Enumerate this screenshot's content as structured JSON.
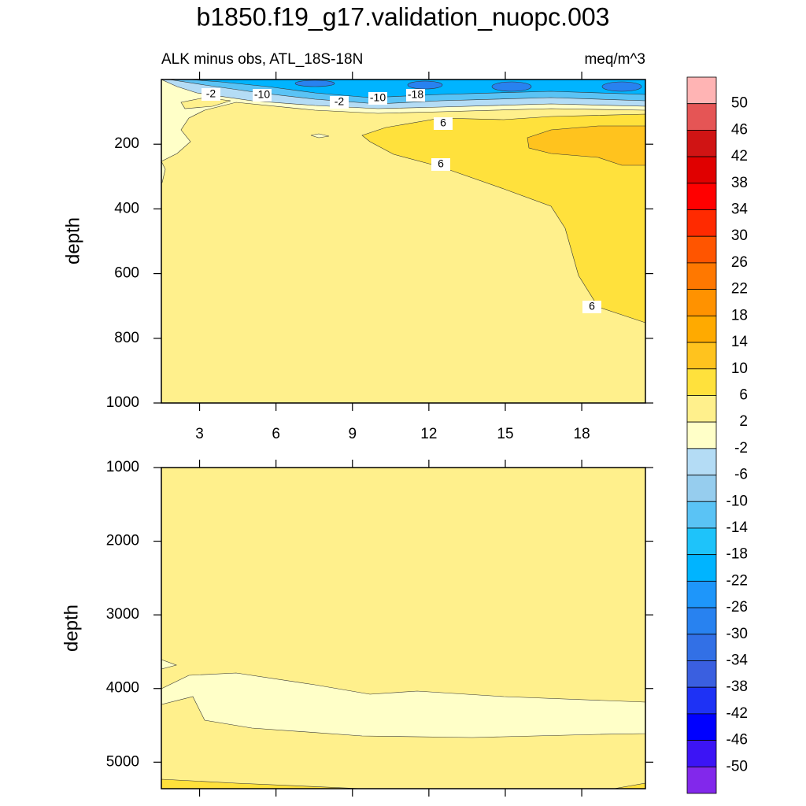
{
  "title": "b1850.f19_g17.validation_nuopc.003",
  "chart_data": [
    {
      "type": "contour",
      "subtitle": "ALK minus obs, ATL_18S-18N",
      "units": "meq/m^3",
      "ylabel": "depth",
      "xlim": [
        1.5,
        20.5
      ],
      "xticks": [
        3,
        6,
        9,
        12,
        15,
        18
      ],
      "ylim": [
        0,
        1000
      ],
      "yticks": [
        200,
        400,
        600,
        800,
        1000
      ],
      "y_reversed": true,
      "contour_labels": [
        -2,
        -10,
        -2,
        -10,
        -18,
        6,
        6,
        6
      ]
    },
    {
      "type": "contour",
      "ylabel": "depth",
      "xlim": [
        1.5,
        20.5
      ],
      "xticks": [
        3,
        6,
        9,
        12,
        15,
        18
      ],
      "ylim": [
        1000,
        5360
      ],
      "yticks": [
        1000,
        2000,
        3000,
        4000,
        5000
      ],
      "y_reversed": true
    }
  ],
  "colorbar": {
    "levels": [
      50,
      46,
      42,
      38,
      34,
      30,
      26,
      22,
      18,
      14,
      10,
      6,
      2,
      -2,
      -6,
      -10,
      -14,
      -18,
      -22,
      -26,
      -30,
      -34,
      -38,
      -42,
      -46,
      -50
    ],
    "colors": [
      "#ffb4b4",
      "#e55555",
      "#d01414",
      "#e00000",
      "#ff0000",
      "#ff2a00",
      "#ff5500",
      "#ff7800",
      "#ff9200",
      "#ffaa00",
      "#ffc31e",
      "#ffe13c",
      "#fff08c",
      "#ffffc8",
      "#b4dcf5",
      "#96cdee",
      "#5ac3f5",
      "#1ec3fa",
      "#00b4ff",
      "#1e96fa",
      "#2882f0",
      "#3270e6",
      "#3a5fe0",
      "#1e32f5",
      "#0000ff",
      "#3c14f5",
      "#8228eb"
    ]
  }
}
